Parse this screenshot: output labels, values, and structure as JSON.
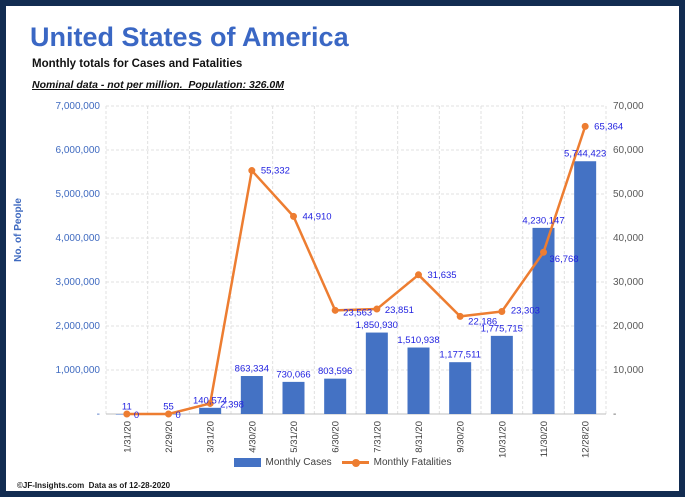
{
  "header": {
    "title": "United States of America",
    "subtitle": "Monthly totals for Cases and Fatalities",
    "note": "Nominal data - not per million.  Population: 326.0M"
  },
  "footer": {
    "credit": "©JF-Insights.com  Data as of 12-28-2020"
  },
  "legend": {
    "cases_label": "Monthly Cases",
    "fatalities_label": "Monthly Fatalities"
  },
  "colors": {
    "title": "#3a67c4",
    "frame_border": "#122c51",
    "bar": "#4472c4",
    "line": "#ed7d31",
    "data_label": "#2222e0",
    "left_axis_text": "#3f6ac0",
    "right_axis_text": "#595959",
    "x_axis_text": "#404040",
    "gridline": "#e0e0e0",
    "axis_line": "#bfbfbf"
  },
  "chart_data": {
    "type": "bar",
    "subtype": "combo-bar-line",
    "title": "United States of America",
    "subtitle": "Monthly totals for Cases and Fatalities",
    "categories": [
      "1/31/20",
      "2/29/20",
      "3/31/20",
      "4/30/20",
      "5/31/20",
      "6/30/20",
      "7/31/20",
      "8/31/20",
      "9/30/20",
      "10/31/20",
      "11/30/20",
      "12/28/20"
    ],
    "series": [
      {
        "name": "Monthly Cases",
        "type": "bar",
        "axis": "left",
        "values": [
          11,
          55,
          140574,
          863334,
          730066,
          803596,
          1850930,
          1510938,
          1177511,
          1775715,
          4230147,
          5744423
        ],
        "labels": [
          "11",
          "55",
          "140,574",
          "863,334",
          "730,066",
          "803,596",
          "1,850,930",
          "1,510,938",
          "1,177,511",
          "1,775,715",
          "4,230,147",
          "5,744,423"
        ]
      },
      {
        "name": "Monthly Fatalities",
        "type": "line",
        "axis": "right",
        "values": [
          0,
          0,
          2398,
          55332,
          44910,
          23563,
          23851,
          31635,
          22186,
          23303,
          36768,
          65364
        ],
        "labels": [
          "0",
          "0",
          "2,398",
          "55,332",
          "44,910",
          "23,563",
          "23,851",
          "31,635",
          "22,186",
          "23,303",
          "36,768",
          "65,364"
        ]
      }
    ],
    "left_axis": {
      "title": "No. of People",
      "min": 0,
      "max": 7000000,
      "step": 1000000,
      "zero_label": "-"
    },
    "right_axis": {
      "title": "",
      "min": 0,
      "max": 70000,
      "step": 10000,
      "zero_label": "-"
    },
    "grid": true,
    "legend_position": "bottom"
  }
}
